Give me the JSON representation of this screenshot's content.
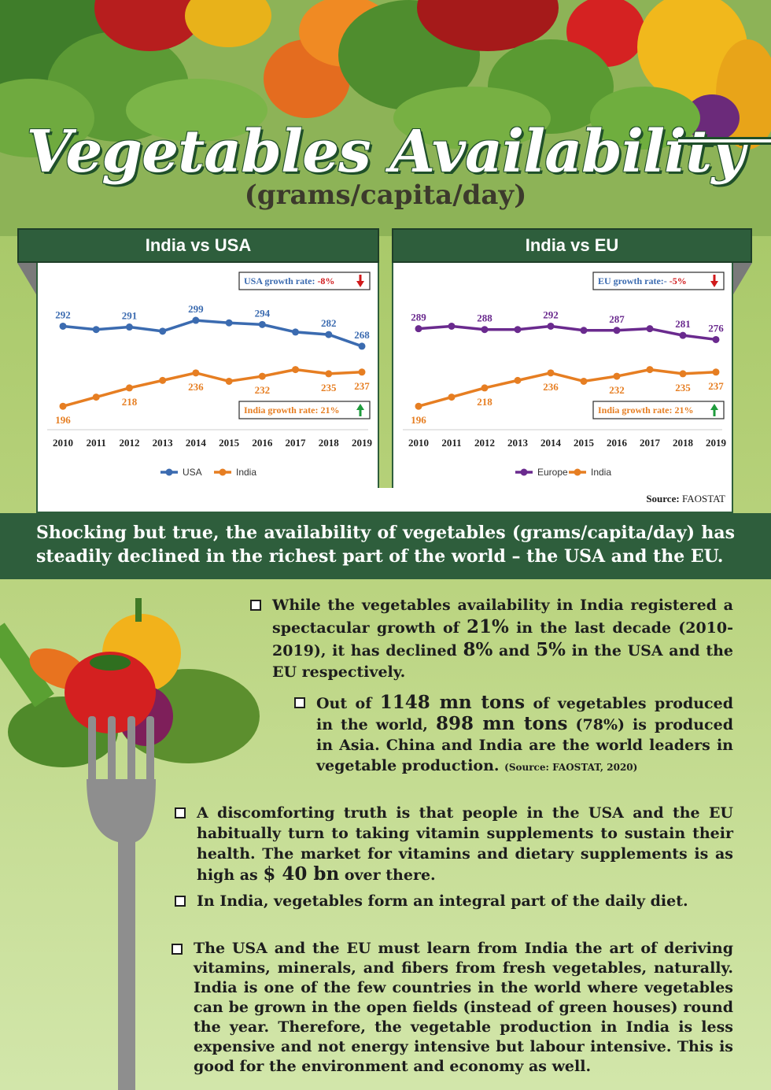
{
  "header": {
    "title": "Vegetables Availability",
    "subtitle": "(grams/capita/day)"
  },
  "colors": {
    "dark_green": "#2e5e3c",
    "usa": "#3b6bb0",
    "india": "#e67e22",
    "europe": "#6a2a8e",
    "down_arrow": "#d0191b",
    "up_arrow": "#1e9b3c"
  },
  "chart_data": [
    {
      "type": "line",
      "title": "India vs USA",
      "x": [
        "2010",
        "2011",
        "2012",
        "2013",
        "2014",
        "2015",
        "2016",
        "2017",
        "2018",
        "2019"
      ],
      "series": [
        {
          "name": "USA",
          "values": [
            292,
            288,
            291,
            286,
            299,
            296,
            294,
            285,
            282,
            268
          ],
          "labels": {
            "0": "292",
            "2": "291",
            "4": "299",
            "6": "294",
            "8": "282",
            "9": "268"
          }
        },
        {
          "name": "India",
          "values": [
            196,
            207,
            218,
            227,
            236,
            226,
            232,
            240,
            235,
            237
          ],
          "labels": {
            "0": "196",
            "2": "218",
            "4": "236",
            "6": "232",
            "8": "235",
            "9": "237"
          }
        }
      ],
      "annotations": {
        "top": {
          "label": "USA growth rate:",
          "value": "-8%"
        },
        "bottom": {
          "label": "India growth rate:",
          "value": "21%"
        }
      },
      "legend": {
        "position": "bottom"
      }
    },
    {
      "type": "line",
      "title": "India vs EU",
      "x": [
        "2010",
        "2011",
        "2012",
        "2013",
        "2014",
        "2015",
        "2016",
        "2017",
        "2018",
        "2019"
      ],
      "series": [
        {
          "name": "Europe",
          "values": [
            289,
            292,
            288,
            288,
            292,
            287,
            287,
            289,
            281,
            276
          ],
          "labels": {
            "0": "289",
            "2": "288",
            "4": "292",
            "6": "287",
            "8": "281",
            "9": "276"
          }
        },
        {
          "name": "India",
          "values": [
            196,
            207,
            218,
            227,
            236,
            226,
            232,
            240,
            235,
            237
          ],
          "labels": {
            "0": "196",
            "2": "218",
            "4": "236",
            "6": "232",
            "8": "235",
            "9": "237"
          }
        }
      ],
      "annotations": {
        "top": {
          "label": "EU growth rate:-",
          "value": "-5%"
        },
        "bottom": {
          "label": "India growth rate:",
          "value": "21%"
        }
      },
      "legend": {
        "position": "bottom"
      }
    }
  ],
  "source": {
    "label": "Source:",
    "value": "FAOSTAT"
  },
  "banner": {
    "text": "Shocking but true, the availability of vegetables (grams/capita/day) has steadily declined in the richest part of the world – the USA and the EU."
  },
  "bullets": {
    "b1": {
      "t1": "While the vegetables availability in India registered a spectacular growth of ",
      "n1": "21%",
      "t2": " in the last decade (2010-2019), it has declined ",
      "n2": "8%",
      "t3": " and ",
      "n3": "5%",
      "t4": " in the USA and the EU respectively."
    },
    "b2": {
      "t1": "Out of ",
      "n1": "1148 mn tons",
      "t2": " of vegetables produced in the world, ",
      "n2": "898 mn tons",
      "t3": " (78%) is produced in Asia. China and India are the world leaders in vegetable production. ",
      "src": "(Source: FAOSTAT, 2020)"
    },
    "b3": {
      "t1": "A discomforting truth is that people in the USA and the EU habitually turn to taking vitamin supplements to sustain their health. The market for vitamins and dietary supplements is as high as ",
      "n1": "$ 40 bn",
      "t2": " over there."
    },
    "b4": {
      "t1": "In India, vegetables form an integral part of the daily diet."
    },
    "b5": {
      "t1": "The USA and the EU must learn from India the art of deriving vitamins, minerals, and fibers from fresh vegetables, naturally. India is one of the few countries in the world where vegetables can be grown in the open fields (instead of green houses) round the year. Therefore, the vegetable production in India is less expensive and not energy intensive but labour intensive. This is good for the environment and economy as well."
    }
  }
}
